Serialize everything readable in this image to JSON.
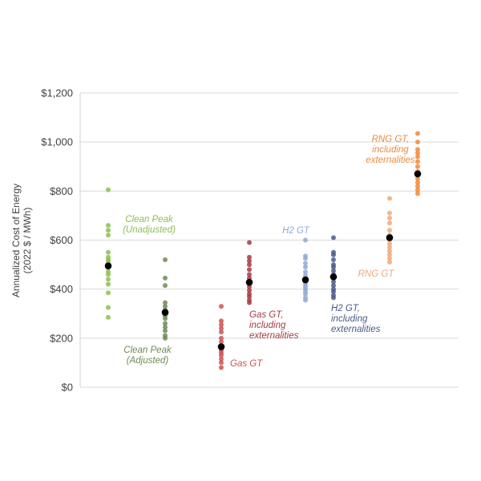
{
  "chart_data": {
    "type": "scatter",
    "ylabel_lines": [
      "Annualized Cost of Energy",
      "(2022 $ / MWh)"
    ],
    "ylim": [
      0,
      1200
    ],
    "yticks": [
      0,
      200,
      400,
      600,
      800,
      1000,
      1200
    ],
    "ytick_labels": [
      "$0",
      "$200",
      "$400",
      "$600",
      "$800",
      "$1,000",
      "$1,200"
    ],
    "grid": true,
    "series": [
      {
        "name": "Clean Peak (Unadjusted)",
        "label_lines": [
          "Clean Peak",
          "(Unadjusted)"
        ],
        "color": "#8cbf4f",
        "values": [
          805,
          660,
          640,
          620,
          550,
          530,
          520,
          510,
          500,
          485,
          470,
          460,
          440,
          420,
          385,
          325,
          285
        ],
        "mean": 495
      },
      {
        "name": "Clean Peak (Adjusted)",
        "label_lines": [
          "Clean Peak",
          "(Adjusted)"
        ],
        "color": "#6f8a55",
        "values": [
          520,
          445,
          415,
          345,
          330,
          315,
          300,
          290,
          280,
          260,
          245,
          230,
          210,
          200
        ],
        "mean": 305
      },
      {
        "name": "Gas GT",
        "label_lines": [
          "Gas GT"
        ],
        "color": "#cf5252",
        "values": [
          330,
          270,
          255,
          240,
          225,
          200,
          185,
          170,
          160,
          150,
          140,
          130,
          115,
          100,
          80
        ],
        "mean": 165
      },
      {
        "name": "Gas GT, including externalities",
        "label_lines": [
          "Gas GT,",
          "including",
          "externalities"
        ],
        "color": "#a63a45",
        "values": [
          590,
          530,
          515,
          500,
          480,
          460,
          445,
          430,
          420,
          410,
          395,
          380,
          370,
          355,
          345
        ],
        "mean": 428
      },
      {
        "name": "H2 GT",
        "label_lines": [
          "H2 GT"
        ],
        "color": "#93a9d2",
        "values": [
          600,
          535,
          525,
          505,
          490,
          470,
          455,
          440,
          430,
          420,
          410,
          400,
          390,
          380,
          365,
          355
        ],
        "mean": 438
      },
      {
        "name": "H2 GT, including externalities",
        "label_lines": [
          "H2 GT,",
          "including",
          "externalities"
        ],
        "color": "#4a5a86",
        "values": [
          610,
          550,
          540,
          520,
          500,
          490,
          475,
          460,
          445,
          430,
          415,
          400,
          390,
          375,
          365
        ],
        "mean": 450
      },
      {
        "name": "RNG GT",
        "label_lines": [
          "RNG GT"
        ],
        "color": "#f0a878",
        "values": [
          770,
          710,
          690,
          670,
          640,
          620,
          600,
          585,
          570,
          555,
          540,
          525,
          510
        ],
        "mean": 610
      },
      {
        "name": "RNG GT, including externalities",
        "label_lines": [
          "RNG GT,",
          "including",
          "externalities"
        ],
        "color": "#ee8a3a",
        "values": [
          1035,
          1000,
          970,
          955,
          940,
          920,
          900,
          880,
          865,
          850,
          835,
          820,
          805,
          790
        ],
        "mean": 870
      }
    ]
  }
}
